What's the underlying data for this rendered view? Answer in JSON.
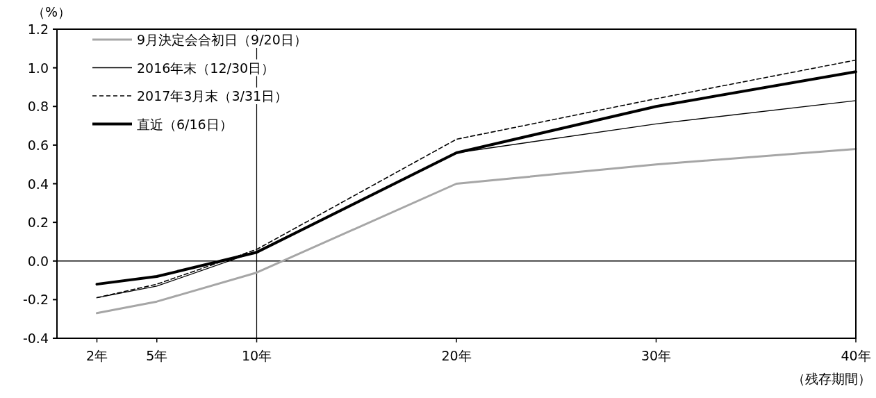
{
  "chart_data": {
    "type": "line",
    "ylabel": "（%）",
    "xlabel": "（残存期間）",
    "x": [
      2,
      5,
      10,
      20,
      30,
      40
    ],
    "xlim": [
      0,
      40
    ],
    "xticks": [
      {
        "value": 2,
        "label": "2年"
      },
      {
        "value": 5,
        "label": "5年"
      },
      {
        "value": 10,
        "label": "10年"
      },
      {
        "value": 20,
        "label": "20年"
      },
      {
        "value": 30,
        "label": "30年"
      },
      {
        "value": 40,
        "label": "40年"
      }
    ],
    "ylim": [
      -0.4,
      1.2
    ],
    "yticks": [
      {
        "value": -0.4,
        "label": "-0.4"
      },
      {
        "value": -0.2,
        "label": "-0.2"
      },
      {
        "value": 0,
        "label": "0.0"
      },
      {
        "value": 0.2,
        "label": "0.2"
      },
      {
        "value": 0.4,
        "label": "0.4"
      },
      {
        "value": 0.6,
        "label": "0.6"
      },
      {
        "value": 0.8,
        "label": "0.8"
      },
      {
        "value": 1.0,
        "label": "1.0"
      },
      {
        "value": 1.2,
        "label": "1.2"
      }
    ],
    "series": [
      {
        "name": "9月決定会合初日（9/20日）",
        "color": "#a6a6a6",
        "line_style": "solid",
        "values": [
          -0.27,
          -0.21,
          -0.06,
          0.4,
          0.5,
          0.58
        ]
      },
      {
        "name": "2016年末（12/30日）",
        "color": "#000000",
        "line_style": "solid",
        "values": [
          -0.19,
          -0.13,
          0.05,
          0.56,
          0.71,
          0.83
        ]
      },
      {
        "name": "2017年3月末（3/31日）",
        "color": "#000000",
        "line_style": "dashed",
        "values": [
          -0.19,
          -0.12,
          0.06,
          0.63,
          0.84,
          1.04
        ]
      },
      {
        "name": "直近（6/16日）",
        "color": "#000000",
        "line_style": "solid",
        "values": [
          -0.12,
          -0.08,
          0.045,
          0.56,
          0.8,
          0.98
        ]
      }
    ],
    "ref_lines": [
      {
        "axis": "x",
        "value": 10,
        "color": "#000000"
      },
      {
        "axis": "y",
        "value": 0,
        "color": "#000000"
      }
    ],
    "legend": "top left",
    "grid": false,
    "marker": "none"
  }
}
